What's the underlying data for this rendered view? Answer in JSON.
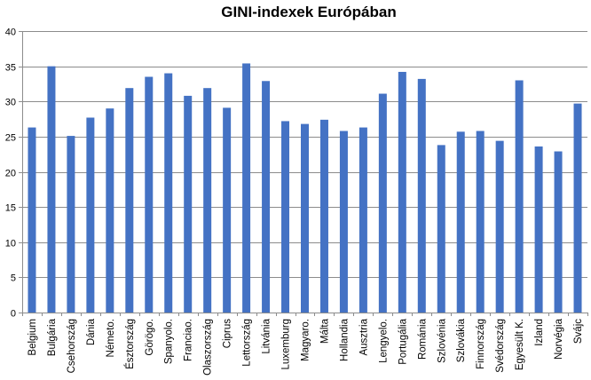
{
  "chart_data": {
    "type": "bar",
    "title": "GINI-indexek Európában",
    "xlabel": "",
    "ylabel": "",
    "ylim": [
      0,
      40
    ],
    "yticks": [
      0,
      5,
      10,
      15,
      20,
      25,
      30,
      35,
      40
    ],
    "grid": true,
    "legend": "none",
    "bar_color": "#4472c4",
    "categories": [
      "Belgium",
      "Bulgária",
      "Csehország",
      "Dánia",
      "Németo.",
      "Észtország",
      "Görögo.",
      "Spanyolo.",
      "Franciao.",
      "Olaszország",
      "Ciprus",
      "Lettország",
      "Litvánia",
      "Luxemburg",
      "Magyaro.",
      "Málta",
      "Hollandia",
      "Ausztria",
      "Lengyelo.",
      "Portugália",
      "Románia",
      "Szlovénia",
      "Szlovákia",
      "Finnország",
      "Svédország",
      "Egyesült K.",
      "Izland",
      "Norvégia",
      "Svájc"
    ],
    "values": [
      26.3,
      35.0,
      25.1,
      27.7,
      29.0,
      31.9,
      33.5,
      34.0,
      30.8,
      31.9,
      29.1,
      35.4,
      32.9,
      27.2,
      26.8,
      27.4,
      25.8,
      26.3,
      31.1,
      34.2,
      33.2,
      23.8,
      25.7,
      25.8,
      24.4,
      33.0,
      23.6,
      22.9,
      29.7
    ]
  }
}
